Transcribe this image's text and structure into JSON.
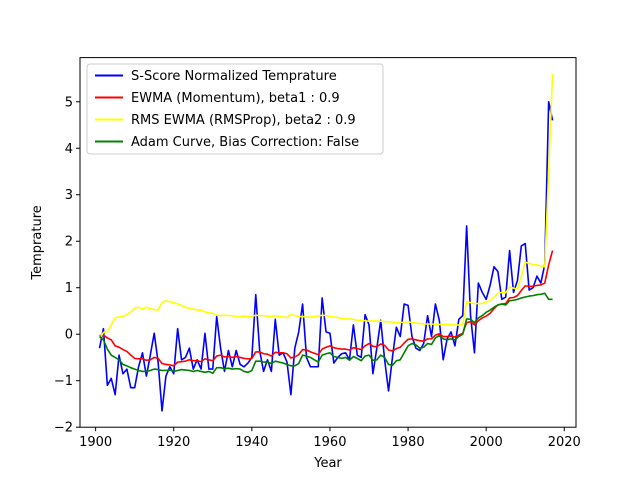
{
  "chart_data": {
    "type": "line",
    "title": "",
    "xlabel": "Year",
    "ylabel": "Temprature",
    "xlim": [
      1896,
      2023
    ],
    "ylim": [
      -2,
      5.95
    ],
    "xticks": [
      1900,
      1920,
      1940,
      1960,
      1980,
      2000,
      2020
    ],
    "yticks": [
      -2,
      -1,
      0,
      1,
      2,
      3,
      4,
      5
    ],
    "grid": false,
    "legend_position": "upper left",
    "series": [
      {
        "name": "S-Score Normalized Temprature",
        "color": "#0000ff",
        "x": [
          1901,
          1902,
          1903,
          1904,
          1905,
          1906,
          1907,
          1908,
          1909,
          1910,
          1911,
          1912,
          1913,
          1914,
          1915,
          1916,
          1917,
          1918,
          1919,
          1920,
          1921,
          1922,
          1923,
          1924,
          1925,
          1926,
          1927,
          1928,
          1929,
          1930,
          1931,
          1932,
          1933,
          1934,
          1935,
          1936,
          1937,
          1938,
          1939,
          1940,
          1941,
          1942,
          1943,
          1944,
          1945,
          1946,
          1947,
          1948,
          1949,
          1950,
          1951,
          1952,
          1953,
          1954,
          1955,
          1956,
          1957,
          1958,
          1959,
          1960,
          1961,
          1962,
          1963,
          1964,
          1965,
          1966,
          1967,
          1968,
          1969,
          1970,
          1971,
          1972,
          1973,
          1974,
          1975,
          1976,
          1977,
          1978,
          1979,
          1980,
          1981,
          1982,
          1983,
          1984,
          1985,
          1986,
          1987,
          1988,
          1989,
          1990,
          1991,
          1992,
          1993,
          1994,
          1995,
          1996,
          1997,
          1998,
          1999,
          2000,
          2001,
          2002,
          2003,
          2004,
          2005,
          2006,
          2007,
          2008,
          2009,
          2010,
          2011,
          2012,
          2013,
          2014,
          2015,
          2016,
          2017
        ],
        "y": [
          -0.3,
          0.12,
          -1.1,
          -0.95,
          -1.3,
          -0.45,
          -0.85,
          -0.75,
          -1.15,
          -1.15,
          -0.7,
          -0.4,
          -0.9,
          -0.45,
          0.02,
          -0.6,
          -1.65,
          -0.9,
          -0.7,
          -0.85,
          0.12,
          -0.55,
          -0.5,
          -0.3,
          -0.75,
          -0.55,
          -0.75,
          0.02,
          -0.75,
          -0.75,
          0.38,
          -0.3,
          -0.8,
          -0.35,
          -0.7,
          -0.35,
          -0.65,
          -0.7,
          -0.62,
          -0.5,
          0.85,
          -0.35,
          -0.8,
          -0.55,
          -0.8,
          0.32,
          -0.45,
          -0.4,
          -0.6,
          -1.3,
          -0.3,
          0.05,
          0.65,
          -0.5,
          -0.7,
          -0.7,
          -0.7,
          0.78,
          0.05,
          0.02,
          -0.62,
          -0.5,
          -0.42,
          -0.4,
          -0.55,
          0.2,
          -0.45,
          -0.5,
          0.42,
          0.2,
          -0.85,
          -0.3,
          0.3,
          -0.55,
          -1.22,
          -0.5,
          0.15,
          -0.05,
          0.65,
          0.62,
          -0.05,
          -0.3,
          -0.35,
          -0.2,
          0.4,
          -0.05,
          0.65,
          0.3,
          -0.55,
          -0.1,
          0.05,
          -0.25,
          0.32,
          0.4,
          2.33,
          0.4,
          -0.4,
          1.1,
          0.9,
          0.75,
          1.05,
          1.45,
          1.35,
          0.75,
          0.8,
          1.8,
          0.9,
          1.15,
          1.9,
          1.95,
          0.95,
          1.0,
          1.25,
          1.1,
          1.5,
          5.0,
          4.6
        ]
      },
      {
        "name": "EWMA (Momentum), beta1 : 0.9",
        "color": "#ff0000",
        "x": [
          1901,
          1902,
          1903,
          1904,
          1905,
          1906,
          1907,
          1908,
          1909,
          1910,
          1911,
          1912,
          1913,
          1914,
          1915,
          1916,
          1917,
          1918,
          1919,
          1920,
          1921,
          1922,
          1923,
          1924,
          1925,
          1926,
          1927,
          1928,
          1929,
          1930,
          1931,
          1932,
          1933,
          1934,
          1935,
          1936,
          1937,
          1938,
          1939,
          1940,
          1941,
          1942,
          1943,
          1944,
          1945,
          1946,
          1947,
          1948,
          1949,
          1950,
          1951,
          1952,
          1953,
          1954,
          1955,
          1956,
          1957,
          1958,
          1959,
          1960,
          1961,
          1962,
          1963,
          1964,
          1965,
          1966,
          1967,
          1968,
          1969,
          1970,
          1971,
          1972,
          1973,
          1974,
          1975,
          1976,
          1977,
          1978,
          1979,
          1980,
          1981,
          1982,
          1983,
          1984,
          1985,
          1986,
          1987,
          1988,
          1989,
          1990,
          1991,
          1992,
          1993,
          1994,
          1995,
          1996,
          1997,
          1998,
          1999,
          2000,
          2001,
          2002,
          2003,
          2004,
          2005,
          2006,
          2007,
          2008,
          2009,
          2010,
          2011,
          2012,
          2013,
          2014,
          2015,
          2016,
          2017
        ],
        "y": [
          -0.03,
          -0.02,
          -0.08,
          -0.12,
          -0.25,
          -0.28,
          -0.33,
          -0.37,
          -0.45,
          -0.52,
          -0.53,
          -0.53,
          -0.56,
          -0.55,
          -0.5,
          -0.52,
          -0.63,
          -0.65,
          -0.66,
          -0.68,
          -0.6,
          -0.59,
          -0.58,
          -0.55,
          -0.57,
          -0.57,
          -0.59,
          -0.53,
          -0.55,
          -0.57,
          -0.47,
          -0.45,
          -0.49,
          -0.48,
          -0.5,
          -0.48,
          -0.5,
          -0.52,
          -0.53,
          -0.52,
          -0.38,
          -0.38,
          -0.42,
          -0.43,
          -0.47,
          -0.39,
          -0.4,
          -0.4,
          -0.42,
          -0.51,
          -0.49,
          -0.44,
          -0.33,
          -0.34,
          -0.38,
          -0.41,
          -0.44,
          -0.32,
          -0.28,
          -0.25,
          -0.29,
          -0.31,
          -0.32,
          -0.32,
          -0.34,
          -0.29,
          -0.31,
          -0.33,
          -0.25,
          -0.2,
          -0.26,
          -0.27,
          -0.21,
          -0.24,
          -0.34,
          -0.36,
          -0.31,
          -0.28,
          -0.19,
          -0.11,
          -0.1,
          -0.12,
          -0.14,
          -0.15,
          -0.1,
          -0.1,
          -0.02,
          0.01,
          -0.05,
          -0.05,
          -0.04,
          -0.06,
          -0.02,
          0.02,
          0.25,
          0.27,
          0.2,
          0.29,
          0.35,
          0.39,
          0.45,
          0.55,
          0.63,
          0.65,
          0.66,
          0.78,
          0.79,
          0.83,
          0.94,
          1.04,
          1.03,
          1.03,
          1.05,
          1.06,
          1.1,
          1.49,
          1.8
        ]
      },
      {
        "name": "RMS EWMA (RMSProp), beta2 : 0.9",
        "color": "#ffff00",
        "x": [
          1901,
          1902,
          1903,
          1904,
          1905,
          1906,
          1907,
          1908,
          1909,
          1910,
          1911,
          1912,
          1913,
          1914,
          1915,
          1916,
          1917,
          1918,
          1919,
          1920,
          1921,
          1922,
          1923,
          1924,
          1925,
          1926,
          1927,
          1928,
          1929,
          1930,
          1931,
          1932,
          1933,
          1934,
          1935,
          1936,
          1937,
          1938,
          1939,
          1940,
          1941,
          1942,
          1943,
          1944,
          1945,
          1946,
          1947,
          1948,
          1949,
          1950,
          1951,
          1952,
          1953,
          1954,
          1955,
          1956,
          1957,
          1958,
          1959,
          1960,
          1961,
          1962,
          1963,
          1964,
          1965,
          1966,
          1967,
          1968,
          1969,
          1970,
          1971,
          1972,
          1973,
          1974,
          1975,
          1976,
          1977,
          1978,
          1979,
          1980,
          1981,
          1982,
          1983,
          1984,
          1985,
          1986,
          1987,
          1988,
          1989,
          1990,
          1991,
          1992,
          1993,
          1994,
          1995,
          1996,
          1997,
          1998,
          1999,
          2000,
          2001,
          2002,
          2003,
          2004,
          2005,
          2006,
          2007,
          2008,
          2009,
          2010,
          2011,
          2012,
          2013,
          2014,
          2015,
          2016,
          2017
        ],
        "y": [
          -0.1,
          0.04,
          0.05,
          0.2,
          0.35,
          0.37,
          0.38,
          0.42,
          0.48,
          0.56,
          0.58,
          0.54,
          0.58,
          0.55,
          0.53,
          0.52,
          0.68,
          0.72,
          0.7,
          0.68,
          0.65,
          0.62,
          0.58,
          0.56,
          0.54,
          0.52,
          0.52,
          0.48,
          0.46,
          0.45,
          0.41,
          0.4,
          0.41,
          0.4,
          0.4,
          0.38,
          0.38,
          0.39,
          0.38,
          0.38,
          0.41,
          0.4,
          0.4,
          0.39,
          0.38,
          0.4,
          0.38,
          0.37,
          0.36,
          0.42,
          0.4,
          0.38,
          0.38,
          0.37,
          0.37,
          0.38,
          0.39,
          0.41,
          0.4,
          0.38,
          0.37,
          0.36,
          0.34,
          0.33,
          0.33,
          0.32,
          0.3,
          0.3,
          0.29,
          0.28,
          0.29,
          0.28,
          0.28,
          0.27,
          0.27,
          0.26,
          0.25,
          0.25,
          0.26,
          0.27,
          0.25,
          0.24,
          0.23,
          0.22,
          0.22,
          0.22,
          0.21,
          0.21,
          0.21,
          0.21,
          0.2,
          0.2,
          0.2,
          0.2,
          0.7,
          0.68,
          0.66,
          0.66,
          0.66,
          0.69,
          0.72,
          0.8,
          0.88,
          0.9,
          0.89,
          1.02,
          0.99,
          0.97,
          1.25,
          1.55,
          1.52,
          1.5,
          1.49,
          1.47,
          1.45,
          3.5,
          5.6
        ]
      },
      {
        "name": "Adam Curve, Bias Correction: False",
        "color": "#008000",
        "x": [
          1901,
          1902,
          1903,
          1904,
          1905,
          1906,
          1907,
          1908,
          1909,
          1910,
          1911,
          1912,
          1913,
          1914,
          1915,
          1916,
          1917,
          1918,
          1919,
          1920,
          1921,
          1922,
          1923,
          1924,
          1925,
          1926,
          1927,
          1928,
          1929,
          1930,
          1931,
          1932,
          1933,
          1934,
          1935,
          1936,
          1937,
          1938,
          1939,
          1940,
          1941,
          1942,
          1943,
          1944,
          1945,
          1946,
          1947,
          1948,
          1949,
          1950,
          1951,
          1952,
          1953,
          1954,
          1955,
          1956,
          1957,
          1958,
          1959,
          1960,
          1961,
          1962,
          1963,
          1964,
          1965,
          1966,
          1967,
          1968,
          1969,
          1970,
          1971,
          1972,
          1973,
          1974,
          1975,
          1976,
          1977,
          1978,
          1979,
          1980,
          1981,
          1982,
          1983,
          1984,
          1985,
          1986,
          1987,
          1988,
          1989,
          1990,
          1991,
          1992,
          1993,
          1994,
          1995,
          1996,
          1997,
          1998,
          1999,
          2000,
          2001,
          2002,
          2003,
          2004,
          2005,
          2006,
          2007,
          2008,
          2009,
          2010,
          2011,
          2012,
          2013,
          2014,
          2015,
          2016,
          2017
        ],
        "y": [
          -0.05,
          -0.12,
          -0.32,
          -0.45,
          -0.5,
          -0.55,
          -0.65,
          -0.68,
          -0.72,
          -0.75,
          -0.78,
          -0.8,
          -0.8,
          -0.78,
          -0.75,
          -0.76,
          -0.78,
          -0.78,
          -0.77,
          -0.8,
          -0.78,
          -0.76,
          -0.77,
          -0.78,
          -0.8,
          -0.78,
          -0.8,
          -0.82,
          -0.8,
          -0.84,
          -0.72,
          -0.72,
          -0.74,
          -0.73,
          -0.75,
          -0.74,
          -0.75,
          -0.8,
          -0.82,
          -0.78,
          -0.58,
          -0.58,
          -0.6,
          -0.6,
          -0.63,
          -0.58,
          -0.6,
          -0.62,
          -0.65,
          -0.68,
          -0.68,
          -0.63,
          -0.45,
          -0.47,
          -0.5,
          -0.55,
          -0.6,
          -0.45,
          -0.42,
          -0.4,
          -0.48,
          -0.5,
          -0.52,
          -0.5,
          -0.56,
          -0.48,
          -0.52,
          -0.57,
          -0.47,
          -0.45,
          -0.56,
          -0.55,
          -0.45,
          -0.5,
          -0.65,
          -0.67,
          -0.57,
          -0.55,
          -0.4,
          -0.25,
          -0.2,
          -0.23,
          -0.3,
          -0.28,
          -0.2,
          -0.22,
          -0.08,
          -0.03,
          -0.1,
          -0.12,
          -0.1,
          -0.12,
          -0.05,
          0.0,
          0.33,
          0.32,
          0.25,
          0.35,
          0.4,
          0.47,
          0.52,
          0.58,
          0.63,
          0.65,
          0.63,
          0.72,
          0.73,
          0.75,
          0.78,
          0.8,
          0.82,
          0.83,
          0.85,
          0.86,
          0.88,
          0.75,
          0.75
        ]
      }
    ]
  }
}
